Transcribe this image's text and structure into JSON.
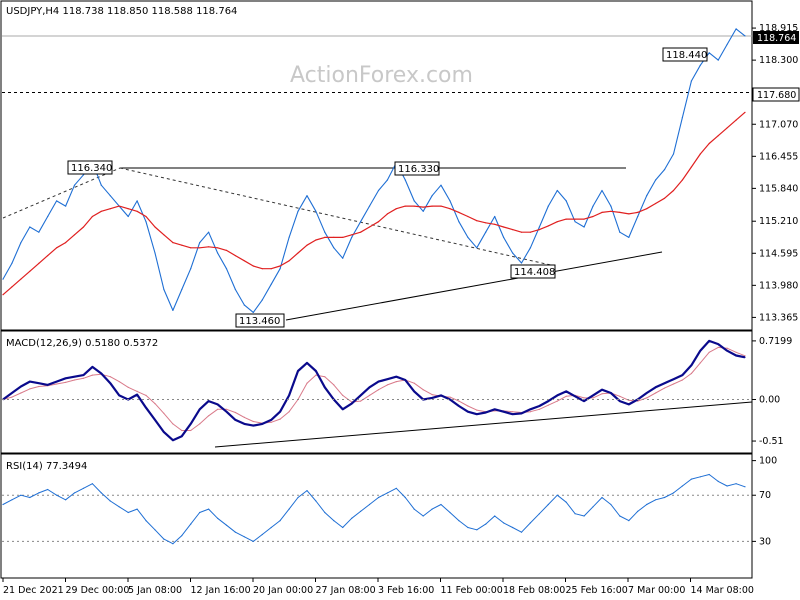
{
  "chart_data": [
    {
      "type": "line",
      "header": "USDJPY,H4  118.738 118.850 118.588 118.764",
      "watermark": "ActionForex.com",
      "ylim": [
        113.2,
        119.3
      ],
      "y_ticks": [
        "118.915",
        "118.300",
        "117.070",
        "116.455",
        "115.840",
        "115.210",
        "114.595",
        "113.980",
        "113.365"
      ],
      "price_tag": "118.764",
      "h_levels": [
        {
          "value": 117.68,
          "label": "117.680"
        }
      ],
      "annotations": [
        "116.340",
        "116.330",
        "118.440",
        "114.408",
        "113.460"
      ],
      "price": [
        114.1,
        114.4,
        114.8,
        115.1,
        115.0,
        115.3,
        115.6,
        115.5,
        115.9,
        116.1,
        116.34,
        115.9,
        115.7,
        115.5,
        115.3,
        115.6,
        115.2,
        114.6,
        113.9,
        113.5,
        113.9,
        114.3,
        114.8,
        115.0,
        114.6,
        114.3,
        113.9,
        113.6,
        113.46,
        113.7,
        114.0,
        114.3,
        114.9,
        115.4,
        115.7,
        115.4,
        115.0,
        114.7,
        114.5,
        114.9,
        115.2,
        115.5,
        115.8,
        116.0,
        116.33,
        116.0,
        115.6,
        115.4,
        115.7,
        115.9,
        115.6,
        115.2,
        114.9,
        114.7,
        115.0,
        115.3,
        114.9,
        114.6,
        114.408,
        114.7,
        115.1,
        115.5,
        115.8,
        115.6,
        115.2,
        115.1,
        115.5,
        115.8,
        115.5,
        115.0,
        114.9,
        115.3,
        115.7,
        116.0,
        116.2,
        116.5,
        117.2,
        117.9,
        118.2,
        118.44,
        118.3,
        118.6,
        118.9,
        118.764
      ],
      "ma": [
        113.8,
        113.95,
        114.1,
        114.25,
        114.4,
        114.55,
        114.7,
        114.8,
        114.95,
        115.1,
        115.3,
        115.4,
        115.45,
        115.5,
        115.45,
        115.4,
        115.3,
        115.1,
        114.95,
        114.8,
        114.75,
        114.7,
        114.7,
        114.72,
        114.7,
        114.65,
        114.55,
        114.45,
        114.35,
        114.3,
        114.3,
        114.35,
        114.45,
        114.6,
        114.75,
        114.85,
        114.9,
        114.9,
        114.9,
        114.95,
        115.0,
        115.1,
        115.2,
        115.35,
        115.45,
        115.5,
        115.5,
        115.48,
        115.5,
        115.5,
        115.45,
        115.38,
        115.3,
        115.22,
        115.18,
        115.15,
        115.1,
        115.05,
        115.0,
        115.0,
        115.05,
        115.12,
        115.2,
        115.25,
        115.25,
        115.25,
        115.3,
        115.38,
        115.4,
        115.38,
        115.35,
        115.38,
        115.45,
        115.55,
        115.65,
        115.8,
        116.0,
        116.25,
        116.5,
        116.7,
        116.85,
        117.0,
        117.15,
        117.3
      ]
    },
    {
      "type": "line",
      "header": "MACD(12,26,9) 0.5180 0.5372",
      "ylim": [
        -0.62,
        0.78
      ],
      "y_ticks": [
        "0.7199",
        "0.00",
        "-0.51"
      ],
      "zero_tag": "0.00",
      "macd": [
        0.0,
        0.08,
        0.16,
        0.22,
        0.2,
        0.18,
        0.22,
        0.26,
        0.28,
        0.3,
        0.4,
        0.32,
        0.2,
        0.05,
        0.0,
        0.06,
        -0.1,
        -0.25,
        -0.4,
        -0.5,
        -0.45,
        -0.3,
        -0.12,
        -0.02,
        -0.06,
        -0.15,
        -0.25,
        -0.3,
        -0.32,
        -0.3,
        -0.25,
        -0.15,
        0.05,
        0.35,
        0.45,
        0.35,
        0.15,
        0.0,
        -0.12,
        -0.05,
        0.05,
        0.15,
        0.22,
        0.25,
        0.28,
        0.24,
        0.1,
        0.0,
        0.02,
        0.05,
        0.0,
        -0.08,
        -0.15,
        -0.18,
        -0.16,
        -0.12,
        -0.15,
        -0.18,
        -0.17,
        -0.12,
        -0.08,
        -0.02,
        0.05,
        0.1,
        0.04,
        -0.02,
        0.05,
        0.12,
        0.08,
        -0.02,
        -0.06,
        0.0,
        0.08,
        0.15,
        0.2,
        0.25,
        0.3,
        0.42,
        0.6,
        0.72,
        0.68,
        0.6,
        0.54,
        0.518
      ],
      "signal": [
        0.0,
        0.03,
        0.08,
        0.13,
        0.16,
        0.17,
        0.19,
        0.21,
        0.24,
        0.26,
        0.3,
        0.31,
        0.28,
        0.22,
        0.15,
        0.1,
        0.05,
        -0.05,
        -0.17,
        -0.3,
        -0.38,
        -0.38,
        -0.3,
        -0.2,
        -0.12,
        -0.12,
        -0.16,
        -0.22,
        -0.27,
        -0.29,
        -0.28,
        -0.24,
        -0.15,
        0.0,
        0.2,
        0.3,
        0.28,
        0.18,
        0.05,
        -0.03,
        -0.02,
        0.05,
        0.12,
        0.18,
        0.22,
        0.24,
        0.2,
        0.12,
        0.06,
        0.04,
        0.03,
        -0.02,
        -0.08,
        -0.13,
        -0.15,
        -0.14,
        -0.14,
        -0.15,
        -0.16,
        -0.15,
        -0.12,
        -0.07,
        -0.02,
        0.04,
        0.05,
        0.02,
        0.02,
        0.07,
        0.08,
        0.04,
        -0.01,
        -0.02,
        0.02,
        0.08,
        0.14,
        0.19,
        0.24,
        0.32,
        0.45,
        0.58,
        0.64,
        0.63,
        0.58,
        0.537
      ]
    },
    {
      "type": "line",
      "header": "RSI(14) 77.3494",
      "ylim": [
        0,
        104
      ],
      "y_ticks": [
        "100",
        "70",
        "30"
      ],
      "levels": [
        70,
        30
      ],
      "rsi": [
        62,
        66,
        70,
        68,
        72,
        75,
        70,
        66,
        72,
        76,
        80,
        72,
        65,
        60,
        55,
        58,
        48,
        40,
        32,
        28,
        35,
        45,
        55,
        58,
        50,
        44,
        38,
        34,
        30,
        36,
        42,
        48,
        58,
        68,
        74,
        65,
        55,
        48,
        42,
        50,
        56,
        62,
        68,
        72,
        76,
        68,
        58,
        52,
        58,
        62,
        55,
        48,
        42,
        40,
        45,
        52,
        46,
        42,
        38,
        46,
        54,
        62,
        70,
        64,
        54,
        52,
        60,
        68,
        62,
        52,
        48,
        56,
        62,
        66,
        68,
        72,
        78,
        84,
        86,
        88,
        82,
        78,
        80,
        77.35
      ]
    }
  ],
  "x_ticks": [
    "21 Dec 2021",
    "29 Dec 00:00",
    "5 Jan 08:00",
    "12 Jan 16:00",
    "20 Jan 00:00",
    "27 Jan 08:00",
    "3 Feb 16:00",
    "11 Feb 00:00",
    "18 Feb 08:00",
    "25 Feb 16:00",
    "7 Mar 00:00",
    "14 Mar 08:00"
  ],
  "colors": {
    "price": "#1f6fd4",
    "ma": "#e02020",
    "macd": "#0a0a8c",
    "signal": "#d97a8a",
    "rsi": "#1f6fd4",
    "frame": "#000000",
    "level": "#888888",
    "watermark": "#c8c8c8"
  }
}
